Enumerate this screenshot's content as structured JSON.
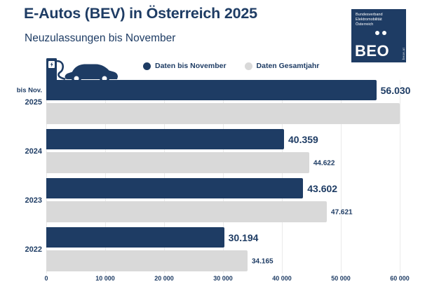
{
  "header": {
    "title": "E-Autos (BEV) in Österreich 2025",
    "subtitle": "Neuzulassungen bis November"
  },
  "logo": {
    "org_lines": [
      "Bundesverband",
      "Elektromobilität",
      "Österreich"
    ],
    "acronym": "BEO",
    "website": "beoe.at"
  },
  "legend": {
    "items": [
      {
        "label": "Daten bis November",
        "color": "#1e3c64"
      },
      {
        "label": "Daten Gesamtjahr",
        "color": "#d9d9d9"
      }
    ]
  },
  "colors": {
    "navy": "#1e3c64",
    "gray_bar": "#d9d9d9",
    "grid": "#eaeaea",
    "background": "#ffffff"
  },
  "chart_data": {
    "type": "bar",
    "orientation": "horizontal",
    "title": "E-Autos (BEV) in Österreich 2025",
    "subtitle": "Neuzulassungen bis November",
    "categories": [
      "2025",
      "2024",
      "2023",
      "2022"
    ],
    "row_top_label": "bis Nov.",
    "series": [
      {
        "name": "Daten bis November",
        "color": "#1e3c64",
        "values": [
          56030,
          40359,
          43602,
          30194
        ],
        "value_labels": [
          "56.030",
          "40.359",
          "43.602",
          "30.194"
        ]
      },
      {
        "name": "Daten Gesamtjahr",
        "color": "#d9d9d9",
        "values": [
          60000,
          44622,
          47621,
          34165
        ],
        "value_labels": [
          "",
          "44.622",
          "47.621",
          "34.165"
        ],
        "note": "2025 Gesamtjahr bar is rendered without a data label; length estimated from pixels (~60 000)"
      }
    ],
    "xlim": [
      0,
      60000
    ],
    "x_ticks": [
      0,
      10000,
      20000,
      30000,
      40000,
      50000,
      60000
    ],
    "x_tick_labels": [
      "0",
      "10 000",
      "20 000",
      "30 000",
      "40 000",
      "50 000",
      "60 000"
    ],
    "grid": true,
    "legend_position": "top"
  }
}
